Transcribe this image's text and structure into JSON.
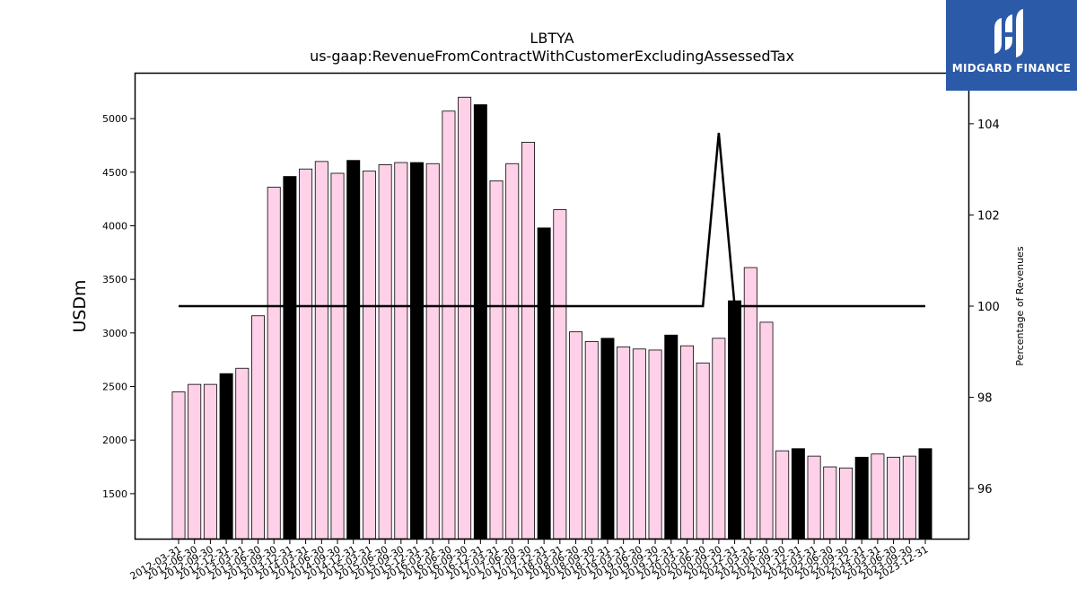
{
  "chart_data": {
    "type": "bar",
    "title": "LBTYA",
    "subtitle": "us-gaap:RevenueFromContractWithCustomerExcludingAssessedTax",
    "ylabel": "USDm",
    "y2label": "Percentage of Revenues",
    "ylim": [
      1080,
      5420
    ],
    "y2lim": [
      94.9,
      105.1
    ],
    "yticks": [
      1500,
      2000,
      2500,
      3000,
      3500,
      4000,
      4500,
      5000
    ],
    "y2ticks": [
      96,
      98,
      100,
      102,
      104
    ],
    "grid": false,
    "colors": {
      "bar": "#ffd1e8",
      "bar_q4": "#000000",
      "line": "#000000"
    },
    "categories": [
      "2012-03-31",
      "2012-06-30",
      "2012-09-30",
      "2012-12-31",
      "2013-03-31",
      "2013-06-30",
      "2013-09-30",
      "2013-12-31",
      "2014-03-31",
      "2014-06-30",
      "2014-09-30",
      "2014-12-31",
      "2015-03-31",
      "2015-06-30",
      "2015-09-30",
      "2015-12-31",
      "2016-03-31",
      "2016-06-30",
      "2016-09-30",
      "2016-12-31",
      "2017-03-31",
      "2017-06-30",
      "2017-09-30",
      "2017-12-31",
      "2018-03-31",
      "2018-06-30",
      "2018-09-30",
      "2018-12-31",
      "2019-03-31",
      "2019-06-30",
      "2019-09-30",
      "2019-12-31",
      "2020-03-31",
      "2020-06-30",
      "2020-09-30",
      "2020-12-31",
      "2021-03-31",
      "2021-06-30",
      "2021-09-30",
      "2021-12-31",
      "2022-03-31",
      "2022-06-30",
      "2022-09-30",
      "2022-12-31",
      "2023-03-31",
      "2023-06-30",
      "2023-09-30",
      "2023-12-31"
    ],
    "series": [
      {
        "kind": "bar",
        "values": [
          2450,
          2520,
          2520,
          2620,
          2670,
          3160,
          4360,
          4460,
          4530,
          4600,
          4490,
          4610,
          4510,
          4570,
          4590,
          4590,
          4580,
          5070,
          5200,
          5130,
          4420,
          4580,
          4780,
          3980,
          4150,
          3010,
          2920,
          2950,
          2870,
          2850,
          2840,
          2980,
          2880,
          2720,
          2950,
          3300,
          3610,
          3100,
          1900,
          1920,
          1850,
          1750,
          1740,
          1840,
          1870,
          1840,
          1850,
          1920
        ]
      },
      {
        "kind": "line",
        "axis": "right",
        "values": [
          100,
          100,
          100,
          100,
          100,
          100,
          100,
          100,
          100,
          100,
          100,
          100,
          100,
          100,
          100,
          100,
          100,
          100,
          100,
          100,
          100,
          100,
          100,
          100,
          100,
          100,
          100,
          100,
          100,
          100,
          100,
          100,
          100,
          100,
          103.8,
          100,
          100,
          100,
          100,
          100,
          100,
          100,
          100,
          100,
          100,
          100,
          100,
          100
        ]
      }
    ]
  },
  "logo": {
    "text": "MIDGARD FINANCE"
  }
}
